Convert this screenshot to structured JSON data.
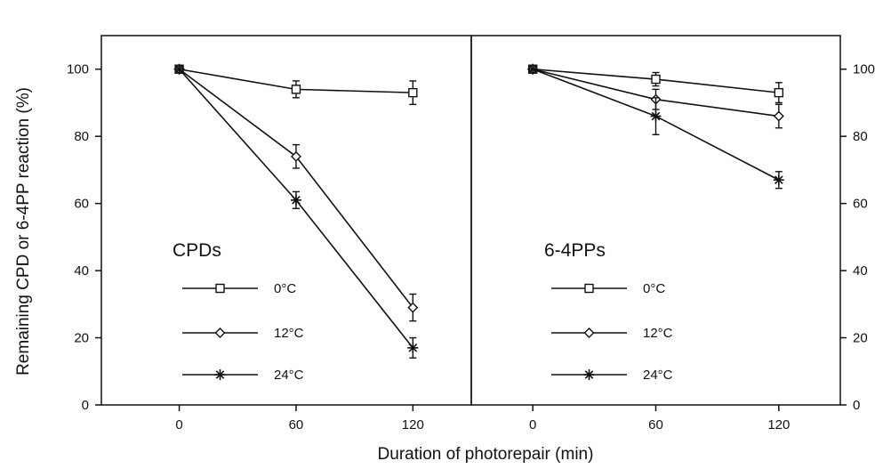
{
  "figure": {
    "y_axis_title": "Remaining CPD or 6-4PP reaction (%)",
    "x_axis_title": "Duration of photorepair (min)"
  },
  "chart_data": [
    {
      "type": "line",
      "title": "CPDs",
      "x": [
        0,
        60,
        120
      ],
      "xlim": [
        -40,
        150
      ],
      "ylim": [
        0,
        110
      ],
      "x_ticks": [
        0,
        60,
        120
      ],
      "y_ticks": [
        0,
        20,
        40,
        60,
        80,
        100
      ],
      "y_axis_side": "left",
      "grid": false,
      "legend_position": "lower-left",
      "series": [
        {
          "name": "0°C",
          "marker": "square",
          "values": [
            100,
            94,
            93
          ],
          "errors": [
            0,
            2.5,
            3.5
          ]
        },
        {
          "name": "12°C",
          "marker": "diamond",
          "values": [
            100,
            74,
            29
          ],
          "errors": [
            0,
            3.5,
            4
          ]
        },
        {
          "name": "24°C",
          "marker": "star",
          "values": [
            100,
            61,
            17
          ],
          "errors": [
            0,
            2.5,
            3
          ]
        }
      ]
    },
    {
      "type": "line",
      "title": "6-4PPs",
      "x": [
        0,
        60,
        120
      ],
      "xlim": [
        -30,
        150
      ],
      "ylim": [
        0,
        110
      ],
      "x_ticks": [
        0,
        60,
        120
      ],
      "y_ticks": [
        0,
        20,
        40,
        60,
        80,
        100
      ],
      "y_axis_side": "right",
      "grid": false,
      "legend_position": "lower-left",
      "series": [
        {
          "name": "0°C",
          "marker": "square",
          "values": [
            100,
            97,
            93
          ],
          "errors": [
            0,
            2,
            3
          ]
        },
        {
          "name": "12°C",
          "marker": "diamond",
          "values": [
            100,
            91,
            86
          ],
          "errors": [
            0,
            3,
            3.5
          ]
        },
        {
          "name": "24°C",
          "marker": "star",
          "values": [
            100,
            86,
            67
          ],
          "errors": [
            0,
            5.5,
            2.5
          ]
        }
      ]
    }
  ]
}
